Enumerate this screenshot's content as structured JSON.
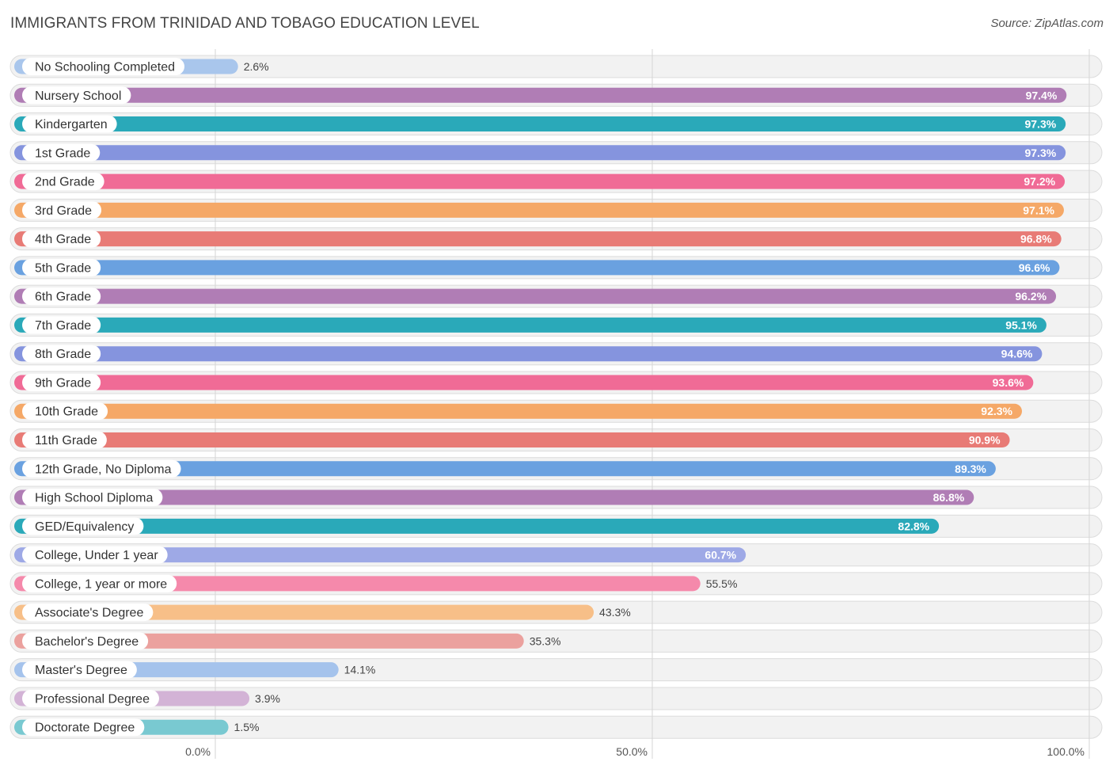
{
  "header": {
    "title": "IMMIGRANTS FROM TRINIDAD AND TOBAGO EDUCATION LEVEL",
    "source": "Source: ZipAtlas.com"
  },
  "chart_data": {
    "type": "bar",
    "orientation": "horizontal",
    "title": "IMMIGRANTS FROM TRINIDAD AND TOBAGO EDUCATION LEVEL",
    "xlim": [
      0,
      100
    ],
    "x_ticks": [
      "0.0%",
      "50.0%",
      "100.0%"
    ],
    "grid": true,
    "categories": [
      "No Schooling Completed",
      "Nursery School",
      "Kindergarten",
      "1st Grade",
      "2nd Grade",
      "3rd Grade",
      "4th Grade",
      "5th Grade",
      "6th Grade",
      "7th Grade",
      "8th Grade",
      "9th Grade",
      "10th Grade",
      "11th Grade",
      "12th Grade, No Diploma",
      "High School Diploma",
      "GED/Equivalency",
      "College, Under 1 year",
      "College, 1 year or more",
      "Associate's Degree",
      "Bachelor's Degree",
      "Master's Degree",
      "Professional Degree",
      "Doctorate Degree"
    ],
    "values": [
      2.6,
      97.4,
      97.3,
      97.3,
      97.2,
      97.1,
      96.8,
      96.6,
      96.2,
      95.1,
      94.6,
      93.6,
      92.3,
      90.9,
      89.3,
      86.8,
      82.8,
      60.7,
      55.5,
      43.3,
      35.3,
      14.1,
      3.9,
      1.5
    ],
    "value_labels": [
      "2.6%",
      "97.4%",
      "97.3%",
      "97.3%",
      "97.2%",
      "97.1%",
      "96.8%",
      "96.6%",
      "96.2%",
      "95.1%",
      "94.6%",
      "93.6%",
      "92.3%",
      "90.9%",
      "89.3%",
      "86.8%",
      "82.8%",
      "60.7%",
      "55.5%",
      "43.3%",
      "35.3%",
      "14.1%",
      "3.9%",
      "1.5%"
    ],
    "colors": [
      "#a9c6ec",
      "#b07db5",
      "#2aa9b9",
      "#8594de",
      "#f06b96",
      "#f5a867",
      "#e87b76",
      "#6aa1e0",
      "#b07db5",
      "#2aa9b9",
      "#8594de",
      "#f06b96",
      "#f5a867",
      "#e87b76",
      "#6aa1e0",
      "#b07db5",
      "#2aa9b9",
      "#9ea9e6",
      "#f589ab",
      "#f7bf88",
      "#eba19e",
      "#a5c3ec",
      "#d3b3d6",
      "#79c9d1"
    ]
  }
}
